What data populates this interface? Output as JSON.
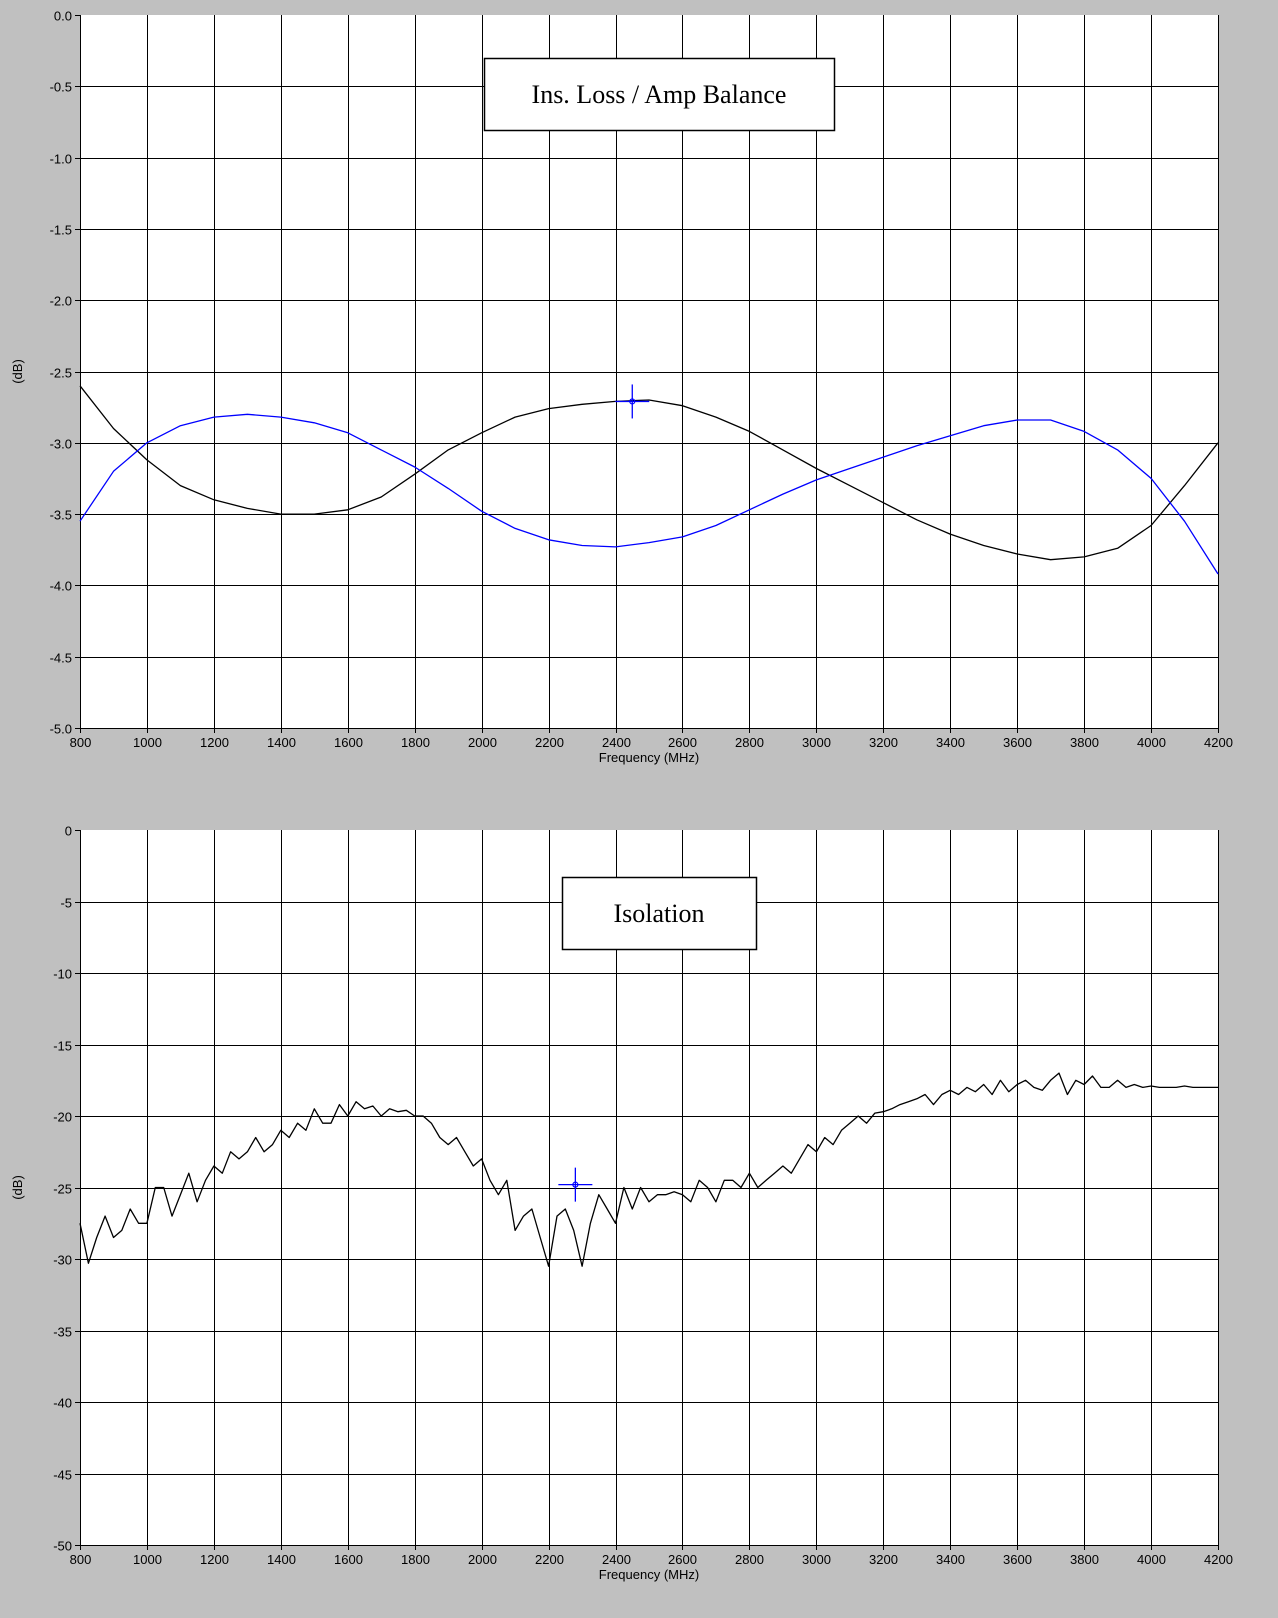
{
  "colors": {
    "frame": "#c0c0c0",
    "plot_background": "#ffffff",
    "grid": "#000000",
    "trace_black": "#000000",
    "trace_blue": "#0000ff",
    "cursor": "#0000ff"
  },
  "chart_data": [
    {
      "type": "line",
      "annotation": "Ins. Loss / Amp Balance",
      "xlabel": "Frequency (MHz)",
      "ylabel": "(dB)",
      "xlim": [
        800,
        4200
      ],
      "ylim": [
        -5.0,
        0.0
      ],
      "xticks": [
        800,
        1000,
        1200,
        1400,
        1600,
        1800,
        2000,
        2200,
        2400,
        2600,
        2800,
        3000,
        3200,
        3400,
        3600,
        3800,
        4000,
        4200
      ],
      "xtick_labels": [
        "800",
        "1000",
        "1200",
        "1400",
        "1600",
        "1800",
        "2000",
        "2200",
        "2400",
        "2600",
        "2800",
        "3000",
        "3200",
        "3400",
        "3600",
        "3800",
        "4000",
        "4200"
      ],
      "yticks": [
        0.0,
        -0.5,
        -1.0,
        -1.5,
        -2.0,
        -2.5,
        -3.0,
        -3.5,
        -4.0,
        -4.5,
        -5.0
      ],
      "ytick_labels": [
        "0.0",
        "-0.5",
        "-1.0",
        "-1.5",
        "-2.0",
        "-2.5",
        "-3.0",
        "-3.5",
        "-4.0",
        "-4.5",
        "-5.0"
      ],
      "grid": true,
      "cursor": {
        "x": 2450,
        "y": -2.71
      },
      "series": [
        {
          "color": "#000000",
          "x": [
            800,
            900,
            1000,
            1100,
            1200,
            1300,
            1400,
            1500,
            1600,
            1700,
            1800,
            1900,
            2000,
            2100,
            2200,
            2300,
            2400,
            2500,
            2600,
            2700,
            2800,
            2900,
            3000,
            3100,
            3200,
            3300,
            3400,
            3500,
            3600,
            3700,
            3800,
            3900,
            4000,
            4100,
            4200
          ],
          "y": [
            -2.6,
            -2.9,
            -3.12,
            -3.3,
            -3.4,
            -3.46,
            -3.5,
            -3.5,
            -3.47,
            -3.38,
            -3.22,
            -3.05,
            -2.93,
            -2.82,
            -2.76,
            -2.73,
            -2.71,
            -2.7,
            -2.74,
            -2.82,
            -2.92,
            -3.05,
            -3.18,
            -3.3,
            -3.42,
            -3.54,
            -3.64,
            -3.72,
            -3.78,
            -3.82,
            -3.8,
            -3.74,
            -3.58,
            -3.3,
            -3.0
          ]
        },
        {
          "color": "#0000ff",
          "x": [
            800,
            900,
            1000,
            1100,
            1200,
            1300,
            1400,
            1500,
            1600,
            1700,
            1800,
            1900,
            2000,
            2100,
            2200,
            2300,
            2400,
            2500,
            2600,
            2700,
            2800,
            2900,
            3000,
            3100,
            3200,
            3300,
            3400,
            3500,
            3600,
            3700,
            3800,
            3900,
            4000,
            4100,
            4200
          ],
          "y": [
            -3.55,
            -3.2,
            -3.0,
            -2.88,
            -2.82,
            -2.8,
            -2.82,
            -2.86,
            -2.93,
            -3.05,
            -3.17,
            -3.32,
            -3.48,
            -3.6,
            -3.68,
            -3.72,
            -3.73,
            -3.7,
            -3.66,
            -3.58,
            -3.47,
            -3.36,
            -3.26,
            -3.18,
            -3.1,
            -3.02,
            -2.95,
            -2.88,
            -2.84,
            -2.84,
            -2.92,
            -3.05,
            -3.25,
            -3.55,
            -3.92
          ]
        }
      ]
    },
    {
      "type": "line",
      "annotation": "Isolation",
      "xlabel": "Frequency (MHz)",
      "ylabel": "(dB)",
      "xlim": [
        800,
        4200
      ],
      "ylim": [
        -50,
        0
      ],
      "xticks": [
        800,
        1000,
        1200,
        1400,
        1600,
        1800,
        2000,
        2200,
        2400,
        2600,
        2800,
        3000,
        3200,
        3400,
        3600,
        3800,
        4000,
        4200
      ],
      "xtick_labels": [
        "800",
        "1000",
        "1200",
        "1400",
        "1600",
        "1800",
        "2000",
        "2200",
        "2400",
        "2600",
        "2800",
        "3000",
        "3200",
        "3400",
        "3600",
        "3800",
        "4000",
        "4200"
      ],
      "yticks": [
        0,
        -5,
        -10,
        -15,
        -20,
        -25,
        -30,
        -35,
        -40,
        -45,
        -50
      ],
      "ytick_labels": [
        "0",
        "-5",
        "-10",
        "-15",
        "-20",
        "-25",
        "-30",
        "-35",
        "-40",
        "-45",
        "-50"
      ],
      "grid": true,
      "cursor": {
        "x": 2280,
        "y": -24.8
      },
      "series": [
        {
          "color": "#000000",
          "x": [
            800,
            825,
            850,
            875,
            900,
            925,
            950,
            975,
            1000,
            1025,
            1050,
            1075,
            1100,
            1125,
            1150,
            1175,
            1200,
            1225,
            1250,
            1275,
            1300,
            1325,
            1350,
            1375,
            1400,
            1425,
            1450,
            1475,
            1500,
            1525,
            1550,
            1575,
            1600,
            1625,
            1650,
            1675,
            1700,
            1725,
            1750,
            1775,
            1800,
            1825,
            1850,
            1875,
            1900,
            1925,
            1950,
            1975,
            2000,
            2025,
            2050,
            2075,
            2100,
            2125,
            2150,
            2175,
            2200,
            2225,
            2250,
            2275,
            2300,
            2325,
            2350,
            2375,
            2400,
            2425,
            2450,
            2475,
            2500,
            2525,
            2550,
            2575,
            2600,
            2625,
            2650,
            2675,
            2700,
            2725,
            2750,
            2775,
            2800,
            2825,
            2850,
            2875,
            2900,
            2925,
            2950,
            2975,
            3000,
            3025,
            3050,
            3075,
            3100,
            3125,
            3150,
            3175,
            3200,
            3225,
            3250,
            3275,
            3300,
            3325,
            3350,
            3375,
            3400,
            3425,
            3450,
            3475,
            3500,
            3525,
            3550,
            3575,
            3600,
            3625,
            3650,
            3675,
            3700,
            3725,
            3750,
            3775,
            3800,
            3825,
            3850,
            3875,
            3900,
            3925,
            3950,
            3975,
            4000,
            4025,
            4050,
            4075,
            4100,
            4125,
            4150,
            4175,
            4200
          ],
          "y": [
            -27.5,
            -30.3,
            -28.5,
            -27.0,
            -28.5,
            -28.0,
            -26.5,
            -27.5,
            -27.5,
            -25.0,
            -25.0,
            -27.0,
            -25.5,
            -24.0,
            -26.0,
            -24.5,
            -23.5,
            -24.0,
            -22.5,
            -23.0,
            -22.5,
            -21.5,
            -22.5,
            -22.0,
            -21.0,
            -21.5,
            -20.5,
            -21.0,
            -19.5,
            -20.5,
            -20.5,
            -19.2,
            -20.0,
            -19.0,
            -19.5,
            -19.3,
            -20.0,
            -19.5,
            -19.7,
            -19.6,
            -20.0,
            -20.0,
            -20.5,
            -21.5,
            -22.0,
            -21.5,
            -22.5,
            -23.5,
            -23.0,
            -24.5,
            -25.5,
            -24.5,
            -28.0,
            -27.0,
            -26.5,
            -28.5,
            -30.5,
            -27.0,
            -26.5,
            -28.0,
            -30.5,
            -27.5,
            -25.5,
            -26.5,
            -27.5,
            -25.0,
            -26.5,
            -25.0,
            -26.0,
            -25.5,
            -25.5,
            -25.3,
            -25.5,
            -26.0,
            -24.5,
            -25.0,
            -26.0,
            -24.5,
            -24.5,
            -25.0,
            -24.0,
            -25.0,
            -24.5,
            -24.0,
            -23.5,
            -24.0,
            -23.0,
            -22.0,
            -22.5,
            -21.5,
            -22.0,
            -21.0,
            -20.5,
            -20.0,
            -20.5,
            -19.8,
            -19.7,
            -19.5,
            -19.2,
            -19.0,
            -18.8,
            -18.5,
            -19.2,
            -18.5,
            -18.2,
            -18.5,
            -18.0,
            -18.3,
            -17.8,
            -18.5,
            -17.5,
            -18.3,
            -17.8,
            -17.5,
            -18.0,
            -18.2,
            -17.5,
            -17.0,
            -18.5,
            -17.5,
            -17.8,
            -17.2,
            -18.0,
            -18.0,
            -17.5,
            -18.0,
            -17.8,
            -18.0,
            -17.9,
            -18.0,
            -18.0,
            -18.0,
            -17.9,
            -18.0,
            -18.0,
            -18.0,
            -18.0
          ]
        }
      ]
    }
  ]
}
